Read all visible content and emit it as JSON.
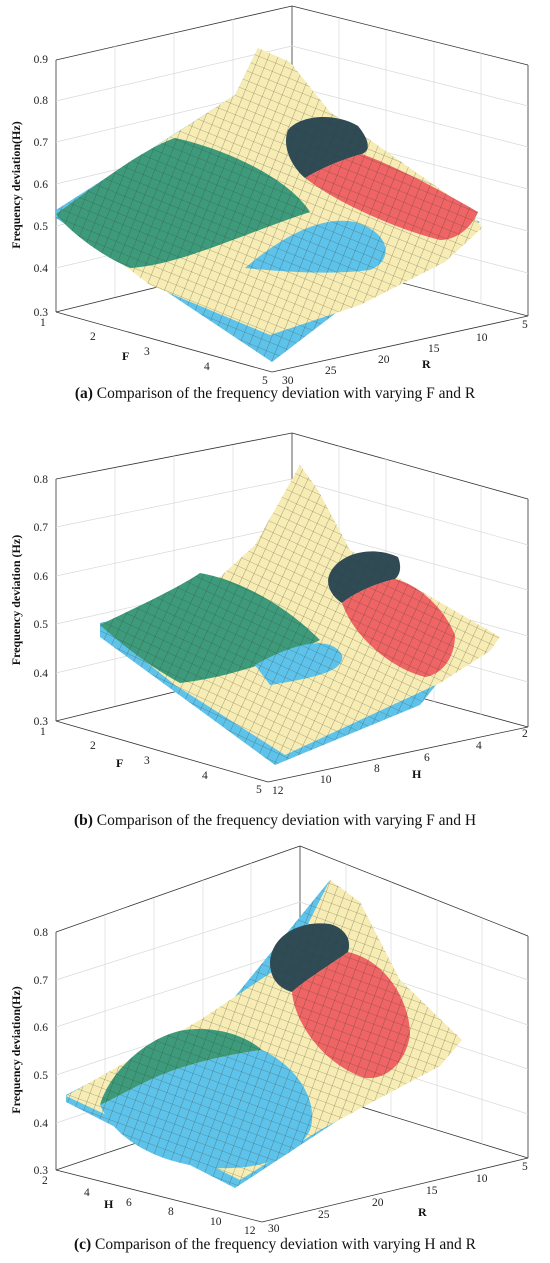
{
  "figures": [
    {
      "id": "a",
      "caption_label": "(a)",
      "caption_text": " Comparison of the frequency deviation with varying F and R"
    },
    {
      "id": "b",
      "caption_label": "(b)",
      "caption_text": " Comparison of the frequency deviation with varying F and H"
    },
    {
      "id": "c",
      "caption_label": "(c)",
      "caption_text": " Comparison of the frequency deviation with varying H and R"
    }
  ],
  "colors": {
    "surface_main": "#f7edb4",
    "surface_mesh": "#3a3a30",
    "region_green": "#3d9b7c",
    "region_blue": "#5ec3ea",
    "region_dark": "#2f4b55",
    "region_red": "#ef6464",
    "grid": "#d9d9d9",
    "axis": "#333333"
  },
  "chart_data": [
    {
      "type": "surface3d",
      "zlabel": "Frequency deviation(Hz)",
      "xlabel": "F",
      "ylabel": "R",
      "x_ticks": [
        "1",
        "2",
        "3",
        "4",
        "5"
      ],
      "y_ticks": [
        "5",
        "10",
        "15",
        "20",
        "25",
        "30"
      ],
      "z_ticks": [
        "0.3",
        "0.4",
        "0.5",
        "0.6",
        "0.7",
        "0.8",
        "0.9"
      ],
      "xlim": [
        1,
        5
      ],
      "ylim": [
        5,
        30
      ],
      "zlim": [
        0.3,
        0.9
      ]
    },
    {
      "type": "surface3d",
      "zlabel": "Frequency deviation (Hz)",
      "xlabel": "F",
      "ylabel": "H",
      "x_ticks": [
        "1",
        "2",
        "3",
        "4",
        "5"
      ],
      "y_ticks": [
        "2",
        "4",
        "6",
        "8",
        "10",
        "12"
      ],
      "z_ticks": [
        "0.3",
        "0.4",
        "0.5",
        "0.6",
        "0.7",
        "0.8"
      ],
      "xlim": [
        1,
        5
      ],
      "ylim": [
        2,
        12
      ],
      "zlim": [
        0.3,
        0.8
      ]
    },
    {
      "type": "surface3d",
      "zlabel": "Frequency deviation(Hz)",
      "xlabel": "H",
      "ylabel": "R",
      "x_ticks": [
        "2",
        "4",
        "6",
        "8",
        "10",
        "12"
      ],
      "y_ticks": [
        "5",
        "10",
        "15",
        "20",
        "25",
        "30"
      ],
      "z_ticks": [
        "0.3",
        "0.4",
        "0.5",
        "0.6",
        "0.7",
        "0.8"
      ],
      "xlim": [
        2,
        12
      ],
      "ylim": [
        5,
        30
      ],
      "zlim": [
        0.3,
        0.8
      ]
    }
  ]
}
